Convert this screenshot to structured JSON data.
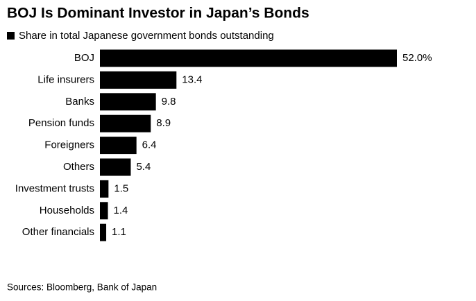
{
  "chart_data": {
    "type": "bar",
    "orientation": "horizontal",
    "title": "BOJ Is Dominant Investor in Japan’s Bonds",
    "categories": [
      "BOJ",
      "Life insurers",
      "Banks",
      "Pension funds",
      "Foreigners",
      "Others",
      "Investment trusts",
      "Households",
      "Other financials"
    ],
    "series": [
      {
        "name": "Share in total Japanese government bonds outstanding",
        "color": "#000000",
        "values": [
          52.0,
          13.4,
          9.8,
          8.9,
          6.4,
          5.4,
          1.5,
          1.4,
          1.1
        ],
        "value_labels": [
          "52.0%",
          "13.4",
          "9.8",
          "8.9",
          "6.4",
          "5.4",
          "1.5",
          "1.4",
          "1.1"
        ]
      }
    ],
    "source": "Sources: Bloomberg, Bank of Japan"
  }
}
